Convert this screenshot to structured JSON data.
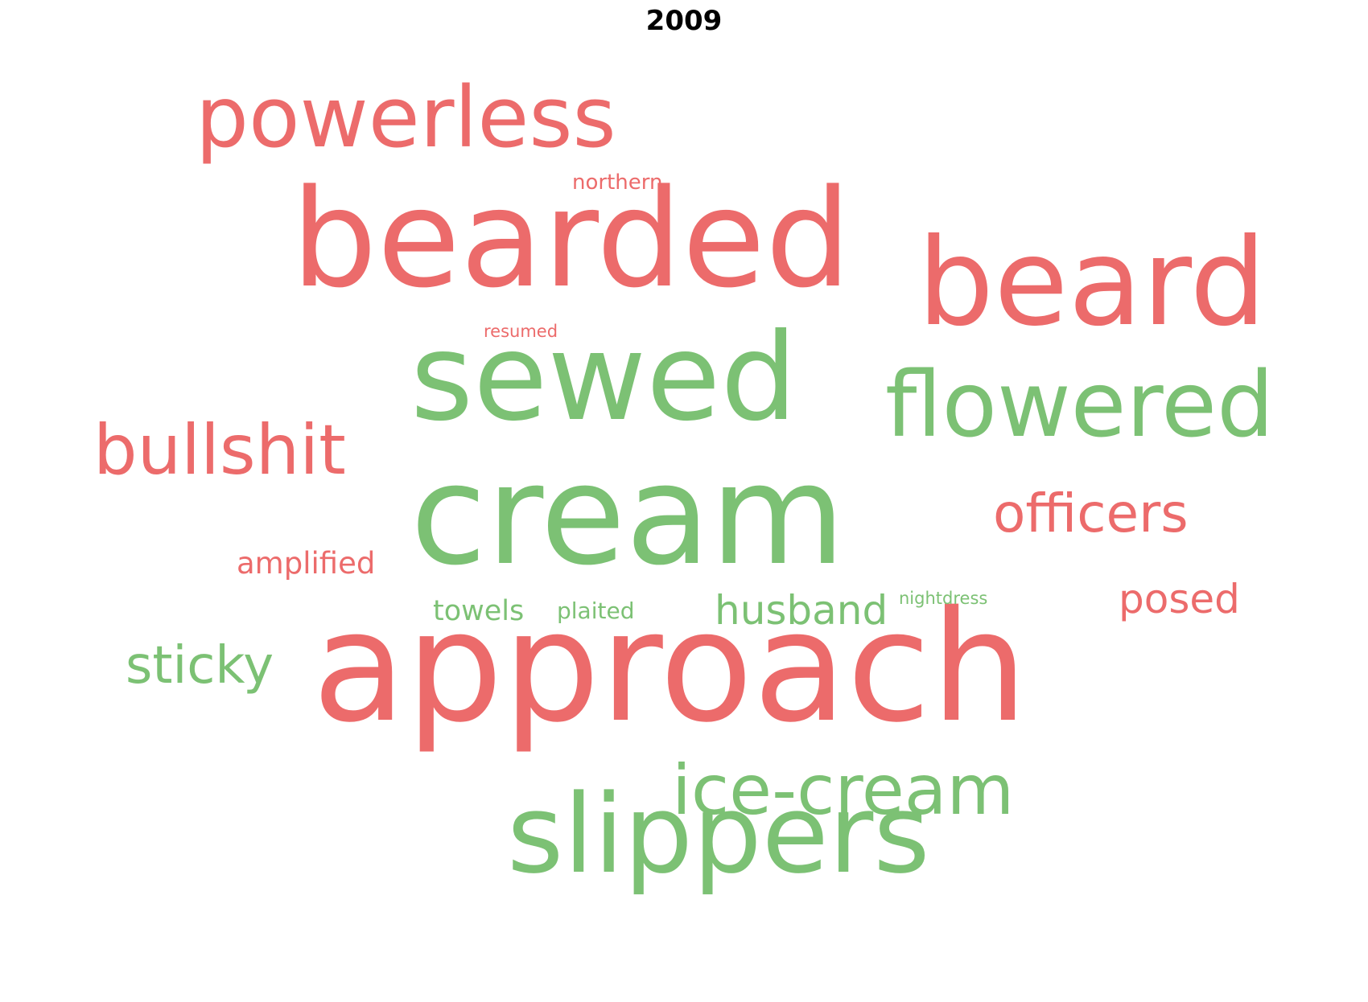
{
  "title": "2009",
  "colors": {
    "red": "#ec6b6b",
    "green": "#7cc174"
  },
  "words": [
    {
      "text": "approach",
      "color": "red"
    },
    {
      "text": "cream",
      "color": "green"
    },
    {
      "text": "bearded",
      "color": "red"
    },
    {
      "text": "sewed",
      "color": "green"
    },
    {
      "text": "beard",
      "color": "red"
    },
    {
      "text": "slippers",
      "color": "green"
    },
    {
      "text": "flowered",
      "color": "green"
    },
    {
      "text": "powerless",
      "color": "red"
    },
    {
      "text": "ice-cream",
      "color": "green"
    },
    {
      "text": "bullshit",
      "color": "red"
    },
    {
      "text": "officers",
      "color": "red"
    },
    {
      "text": "sticky",
      "color": "green"
    },
    {
      "text": "husband",
      "color": "green"
    },
    {
      "text": "posed",
      "color": "red"
    },
    {
      "text": "amplified",
      "color": "red"
    },
    {
      "text": "towels",
      "color": "green"
    },
    {
      "text": "plaited",
      "color": "green"
    },
    {
      "text": "northern",
      "color": "red"
    },
    {
      "text": "nightdress",
      "color": "green"
    },
    {
      "text": "resumed",
      "color": "red"
    }
  ]
}
